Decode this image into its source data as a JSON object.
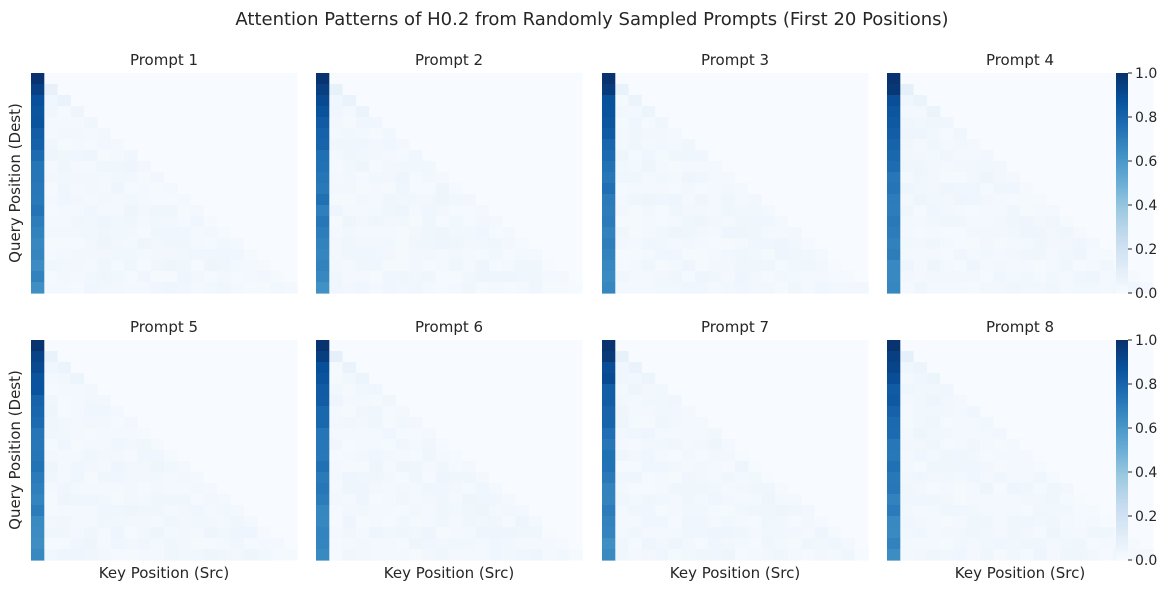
{
  "figure": {
    "title": "Attention Patterns of H0.2 from Randomly Sampled Prompts (First 20 Positions)",
    "background": "#ffffff"
  },
  "chart_data": {
    "type": "heatmap",
    "grid_size": 20,
    "layout": {
      "rows": 2,
      "cols": 4
    },
    "colormap": "Blues",
    "colorscale": [
      "#f7fbff",
      "#deebf7",
      "#c6dbef",
      "#9ecae1",
      "#6baed6",
      "#4292c6",
      "#2171b5",
      "#08519c",
      "#08306b"
    ],
    "vmin": 0,
    "vmax": 1,
    "colorbar_ticks": [
      1.0,
      0.8,
      0.6,
      0.4,
      0.2,
      0.0
    ],
    "colorbar_tick_labels": [
      "1.0",
      "0.8",
      "0.6",
      "0.4",
      "0.2",
      "0.0"
    ],
    "xlabel": "Key Position (Src)",
    "ylabel": "Query Position (Dest)",
    "masking": "causal (lower triangle only; upper triangle shown as near-zero)",
    "first_column_values": [
      1.0,
      0.95,
      0.9,
      0.88,
      0.85,
      0.82,
      0.8,
      0.78,
      0.76,
      0.75,
      0.74,
      0.73,
      0.72,
      0.71,
      0.7,
      0.69,
      0.68,
      0.67,
      0.66,
      0.65
    ],
    "diagonal_values": [
      1.0,
      0.08,
      0.06,
      0.05,
      0.04,
      0.035,
      0.03,
      0.03,
      0.025,
      0.025,
      0.02,
      0.02,
      0.02,
      0.02,
      0.02,
      0.02,
      0.02,
      0.02,
      0.02,
      0.02
    ],
    "off_diagonal_value": 0.015,
    "panels": [
      {
        "title": "Prompt 1",
        "show_ylabel": true,
        "show_xlabel": false,
        "colorbar": false,
        "seed": 11
      },
      {
        "title": "Prompt 2",
        "show_ylabel": false,
        "show_xlabel": false,
        "colorbar": false,
        "seed": 23
      },
      {
        "title": "Prompt 3",
        "show_ylabel": false,
        "show_xlabel": false,
        "colorbar": false,
        "seed": 37
      },
      {
        "title": "Prompt 4",
        "show_ylabel": false,
        "show_xlabel": false,
        "colorbar": true,
        "seed": 41
      },
      {
        "title": "Prompt 5",
        "show_ylabel": true,
        "show_xlabel": true,
        "colorbar": false,
        "seed": 53
      },
      {
        "title": "Prompt 6",
        "show_ylabel": false,
        "show_xlabel": true,
        "colorbar": false,
        "seed": 67
      },
      {
        "title": "Prompt 7",
        "show_ylabel": false,
        "show_xlabel": true,
        "colorbar": false,
        "seed": 71
      },
      {
        "title": "Prompt 8",
        "show_ylabel": false,
        "show_xlabel": true,
        "colorbar": true,
        "seed": 89
      }
    ]
  }
}
